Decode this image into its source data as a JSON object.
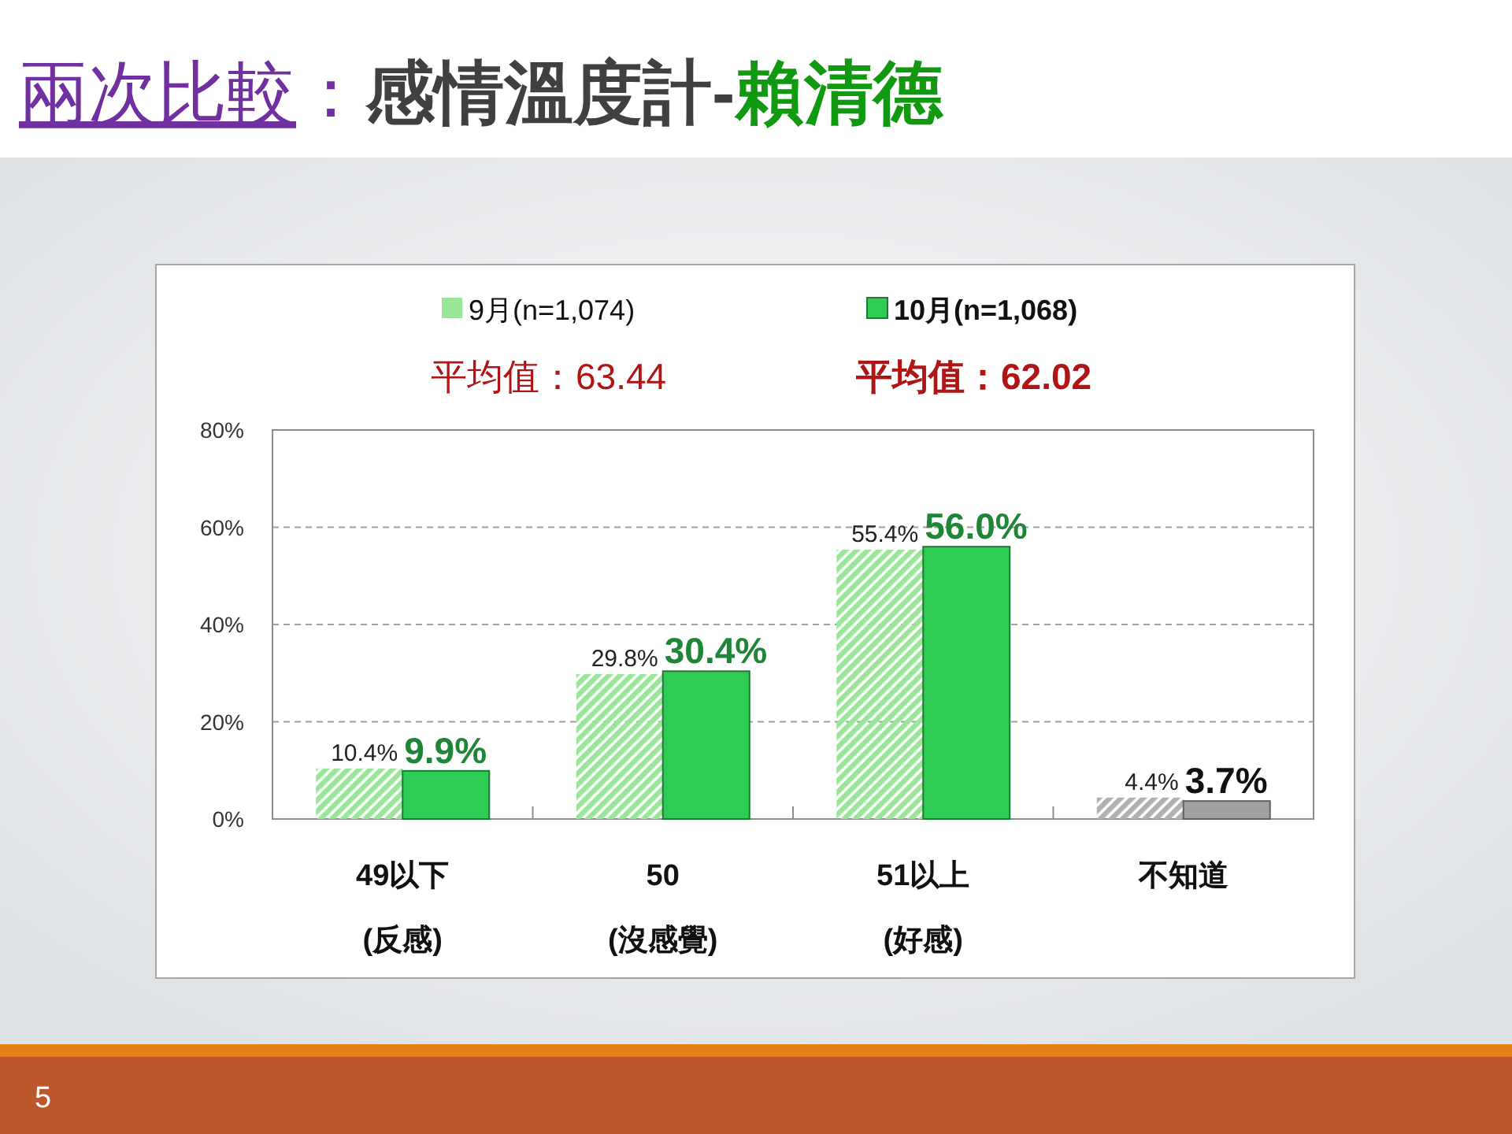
{
  "chart_data": {
    "type": "bar",
    "title": "兩次比較：感情溫度計-賴清德",
    "categories": [
      "49以下\n(反感)",
      "50\n(沒感覺)",
      "51以上\n(好感)",
      "不知道"
    ],
    "series": [
      {
        "name": "9月(n=1,074)",
        "color": "#99e699",
        "colors": [
          "#99e699",
          "#99e699",
          "#99e699",
          "#b0b0b0"
        ],
        "values": [
          10.4,
          29.8,
          55.4,
          4.4
        ],
        "value_labels": [
          "10.4%",
          "29.8%",
          "55.4%",
          "4.4%"
        ]
      },
      {
        "name": "10月(n=1,068)",
        "color": "#2fcc55",
        "colors": [
          "#2fcc55",
          "#2fcc55",
          "#2fcc55",
          "#a0a0a0"
        ],
        "values": [
          9.9,
          30.4,
          56.0,
          3.7
        ],
        "value_labels": [
          "9.9%",
          "30.4%",
          "56.0%",
          "3.7%"
        ]
      }
    ],
    "ylim": [
      0,
      80
    ],
    "yticks": [
      {
        "value": 0,
        "label": "0%"
      },
      {
        "value": 20,
        "label": "20%"
      },
      {
        "value": 40,
        "label": "40%"
      },
      {
        "value": 60,
        "label": "60%"
      },
      {
        "value": 80,
        "label": "80%"
      }
    ],
    "grid": "y",
    "legend": "top",
    "annotations": [
      "平均值：63.44",
      "平均值：62.02",
      "5"
    ]
  }
}
